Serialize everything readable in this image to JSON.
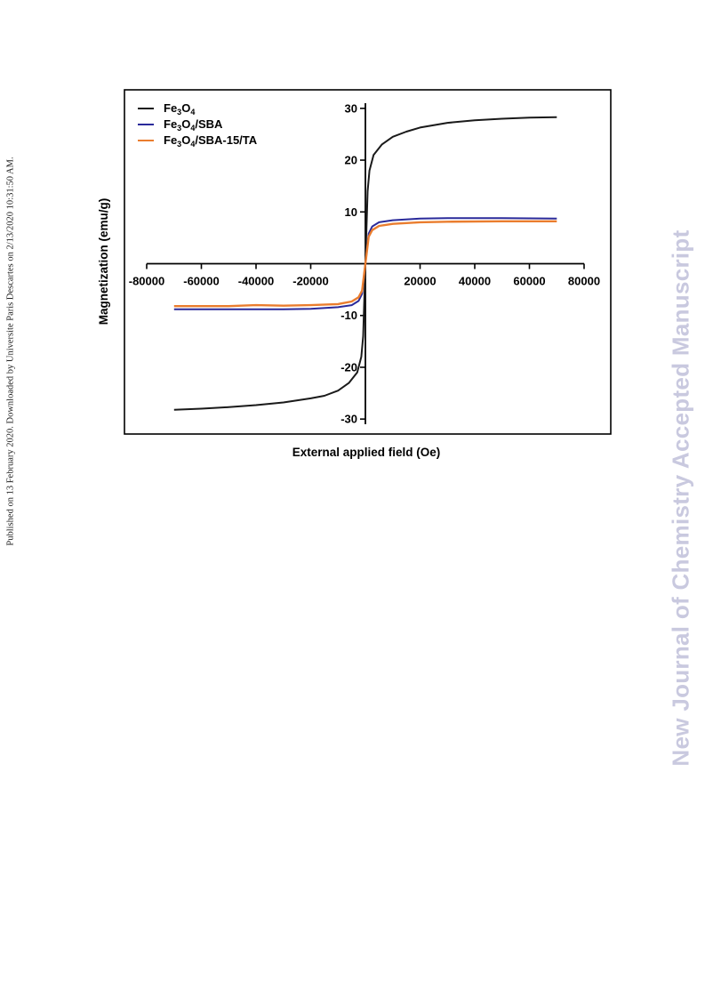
{
  "side_note": "Published on 13 February 2020. Downloaded by Universite Paris Descartes on 2/13/2020 10:31:50 AM.",
  "watermark": {
    "text": "New Journal of Chemistry Accepted Manuscript",
    "color": "#c9c9df"
  },
  "chart_data": {
    "type": "line",
    "title": "",
    "xlabel": "External applied field (Oe)",
    "ylabel": "Magnetization (emu/g)",
    "xlim": [
      -80000,
      80000
    ],
    "ylim": [
      -31,
      31
    ],
    "xticks": [
      -80000,
      -60000,
      -40000,
      -20000,
      20000,
      40000,
      60000,
      80000
    ],
    "yticks": [
      -30,
      -20,
      -10,
      10,
      20,
      30
    ],
    "x_tick_labels": [
      "-80000",
      "-60000",
      "-40000",
      "-20000",
      "20000",
      "40000",
      "60000",
      "80000"
    ],
    "y_tick_labels": [
      "-30",
      "-20",
      "-10",
      "10",
      "20",
      "30"
    ],
    "grid": false,
    "legend_position": "top-left",
    "series": [
      {
        "name": "Fe3O4",
        "color": "#1a1a1a",
        "x": [
          -70000,
          -60000,
          -50000,
          -40000,
          -30000,
          -20000,
          -15000,
          -10000,
          -6000,
          -3000,
          -1500,
          -800,
          0,
          800,
          1500,
          3000,
          6000,
          10000,
          15000,
          20000,
          30000,
          40000,
          50000,
          60000,
          70000
        ],
        "y": [
          -28.2,
          -28.0,
          -27.7,
          -27.3,
          -26.8,
          -26.0,
          -25.5,
          -24.5,
          -23.0,
          -21.0,
          -18.0,
          -14.0,
          0,
          14.0,
          18.0,
          21.0,
          23.0,
          24.5,
          25.5,
          26.3,
          27.2,
          27.7,
          28.0,
          28.2,
          28.3
        ]
      },
      {
        "name": "Fe3O4/SBA",
        "color": "#2a2a9a",
        "x": [
          -70000,
          -50000,
          -30000,
          -20000,
          -10000,
          -5000,
          -2500,
          -1200,
          0,
          1200,
          2500,
          5000,
          10000,
          20000,
          30000,
          50000,
          70000
        ],
        "y": [
          -8.8,
          -8.8,
          -8.8,
          -8.7,
          -8.4,
          -8.0,
          -7.2,
          -5.8,
          0,
          5.8,
          7.2,
          8.0,
          8.4,
          8.7,
          8.8,
          8.8,
          8.7
        ],
        "line_width": 2
      },
      {
        "name": "Fe3O4/SBA-15/TA",
        "color": "#ea7d2e",
        "x": [
          -70000,
          -50000,
          -40000,
          -30000,
          -20000,
          -10000,
          -5000,
          -2500,
          -1200,
          0,
          1200,
          2500,
          5000,
          10000,
          20000,
          30000,
          50000,
          70000
        ],
        "y": [
          -8.2,
          -8.2,
          -8.0,
          -8.1,
          -8.0,
          -7.8,
          -7.3,
          -6.5,
          -5.2,
          0,
          5.2,
          6.5,
          7.3,
          7.7,
          8.0,
          8.1,
          8.2,
          8.2
        ],
        "line_width": 2.4
      }
    ]
  }
}
